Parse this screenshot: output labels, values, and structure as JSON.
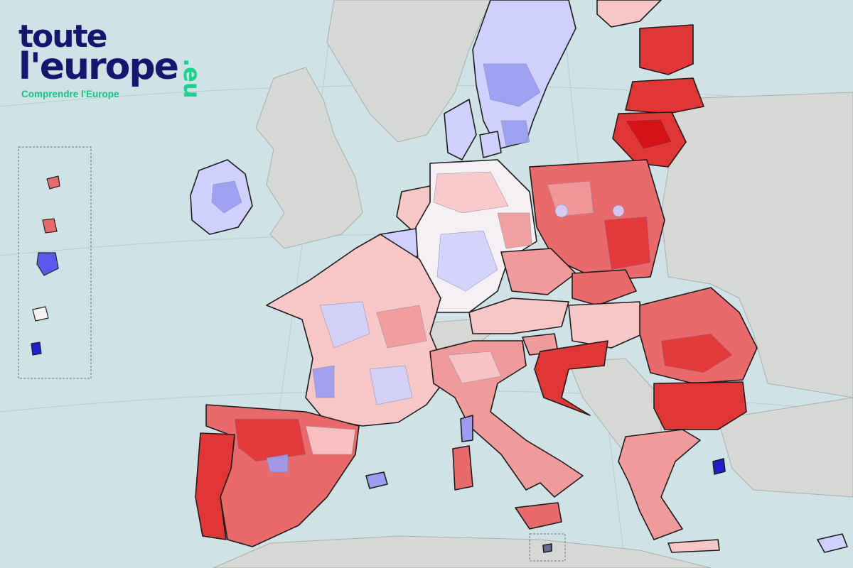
{
  "logo": {
    "line1": "toute",
    "line2": "l'europe",
    "tld": ".eu",
    "tagline": "Comprendre l'Europe"
  },
  "colors": {
    "sea": "#cfe3e6",
    "non_eu_land": "#d6d8d6",
    "country_border": "#1c1c1c",
    "scale": [
      "#1f1fd0",
      "#5959ee",
      "#9b9cf2",
      "#cfd0fb",
      "#f5f0f4",
      "#f7c7c8",
      "#f19a9b",
      "#ea6a6c",
      "#e23536",
      "#d40f12"
    ],
    "brand_navy": "#16166e",
    "brand_green": "#19c27f"
  },
  "map": {
    "type": "choropleth",
    "legend": "none",
    "insets": [
      "outermost-regions",
      "malta"
    ]
  }
}
